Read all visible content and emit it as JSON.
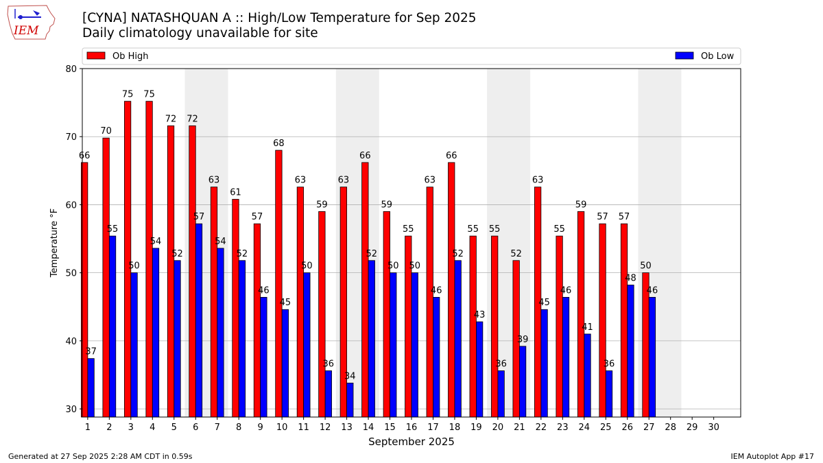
{
  "header": {
    "logo_text": "IEM",
    "title": "[CYNA] NATASHQUAN A :: High/Low Temperature for Sep 2025",
    "subtitle": "Daily climatology unavailable for site"
  },
  "footer": {
    "left": "Generated at 27 Sep 2025 2:28 AM CDT in 0.59s",
    "right": "IEM Autoplot App #17"
  },
  "colors": {
    "high": "#ff0000",
    "low": "#0000ff",
    "weekend_shade": "#eeeeee",
    "grid": "#b0b0b0"
  },
  "chart_data": {
    "type": "bar",
    "title": "[CYNA] NATASHQUAN A :: High/Low Temperature for Sep 2025",
    "subtitle": "Daily climatology unavailable for site",
    "xlabel": "September 2025",
    "ylabel": "Temperature °F",
    "ylim": [
      28.8,
      80
    ],
    "yticks": [
      30,
      40,
      50,
      60,
      70,
      80
    ],
    "grid": true,
    "legend": {
      "position": "top",
      "entries": [
        "Ob High",
        "Ob Low"
      ]
    },
    "categories": [
      "1",
      "2",
      "3",
      "4",
      "5",
      "6",
      "7",
      "8",
      "9",
      "10",
      "11",
      "12",
      "13",
      "14",
      "15",
      "16",
      "17",
      "18",
      "19",
      "20",
      "21",
      "22",
      "23",
      "24",
      "25",
      "26",
      "27",
      "28",
      "29",
      "30"
    ],
    "shaded_days": [
      [
        6,
        7
      ],
      [
        13,
        14
      ],
      [
        20,
        21
      ],
      [
        27,
        28
      ]
    ],
    "series": [
      {
        "name": "Ob High",
        "values": [
          66,
          70,
          75,
          75,
          72,
          72,
          63,
          61,
          57,
          68,
          63,
          59,
          63,
          66,
          59,
          55,
          63,
          66,
          55,
          55,
          52,
          63,
          55,
          59,
          57,
          57,
          50,
          null,
          null,
          null
        ],
        "plotted": [
          66.2,
          69.8,
          75.2,
          75.2,
          71.6,
          71.6,
          62.6,
          60.8,
          57.2,
          68.0,
          62.6,
          59.0,
          62.6,
          66.2,
          59.0,
          55.4,
          62.6,
          66.2,
          55.4,
          55.4,
          51.8,
          62.6,
          55.4,
          59.0,
          57.2,
          57.2,
          50.0,
          null,
          null,
          null
        ]
      },
      {
        "name": "Ob Low",
        "values": [
          37,
          55,
          50,
          54,
          52,
          57,
          54,
          52,
          46,
          45,
          50,
          36,
          34,
          52,
          50,
          50,
          46,
          52,
          43,
          36,
          39,
          45,
          46,
          41,
          36,
          48,
          46,
          null,
          null,
          null
        ],
        "plotted": [
          37.4,
          55.4,
          50.0,
          53.6,
          51.8,
          57.2,
          53.6,
          51.8,
          46.4,
          44.6,
          50.0,
          35.6,
          33.8,
          51.8,
          50.0,
          50.0,
          46.4,
          51.8,
          42.8,
          35.6,
          39.2,
          44.6,
          46.4,
          41.0,
          35.6,
          48.2,
          46.4,
          null,
          null,
          null
        ]
      }
    ]
  }
}
